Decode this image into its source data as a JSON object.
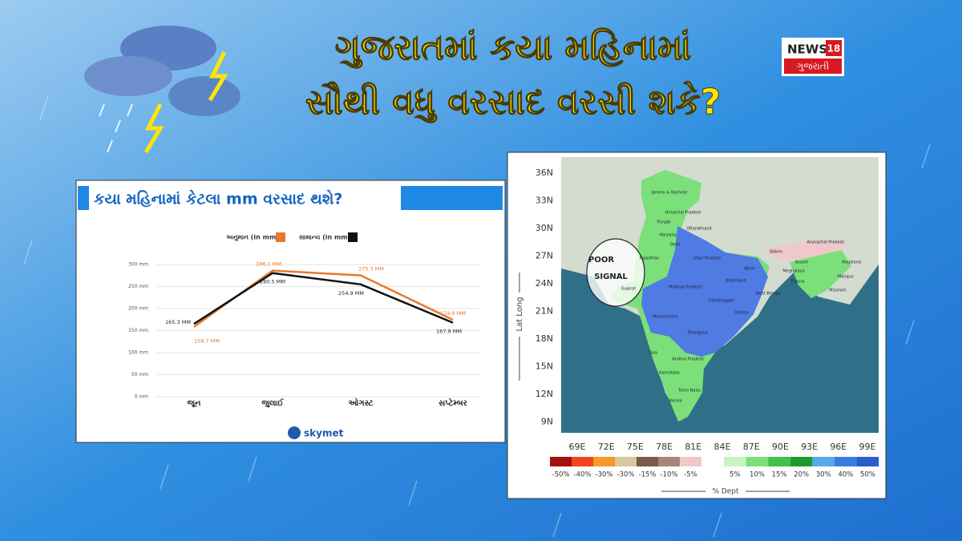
{
  "header": {
    "title_line1": "ગુજરાતમાં કયા મહિનામાં",
    "title_line2": "સૌથી વધુ વરસાદ વરસી શકે?",
    "logo_top": "NEWS",
    "logo_number": "18",
    "logo_bottom": "ગુજરાતી"
  },
  "chart_data": {
    "type": "line",
    "title": "કયા મહિનામાં કેટલા mm વરસાદ થશે?",
    "categories": [
      "જૂન",
      "જુલાઈ",
      "ઓગસ્ટ",
      "સપ્ટેમ્બર"
    ],
    "series": [
      {
        "name": "અનુમાન (in mm)",
        "color": "#e8792a",
        "values": [
          158.7,
          286.1,
          275.3,
          174.6
        ],
        "value_labels": [
          "158.7 MM",
          "286.1 MM",
          "275.3 MM",
          "174.6 MM"
        ]
      },
      {
        "name": "સામાન્ય (in mm)",
        "color": "#111111",
        "values": [
          165.3,
          280.5,
          254.9,
          167.9
        ],
        "value_labels": [
          "165.3 MM",
          "280.5 MM",
          "254.9 MM",
          "167.9 MM"
        ]
      }
    ],
    "ylim": [
      0,
      300
    ],
    "yticks": [
      {
        "value": 0,
        "label": "0 mm"
      },
      {
        "value": 50,
        "label": "50 mm"
      },
      {
        "value": 100,
        "label": "100 mm"
      },
      {
        "value": 150,
        "label": "150 mm"
      },
      {
        "value": 200,
        "label": "200 mm"
      },
      {
        "value": 250,
        "label": "250 mm"
      },
      {
        "value": 300,
        "label": "300 mm"
      }
    ],
    "grid": true,
    "source": "skymet"
  },
  "map": {
    "lat_labels": [
      "36N",
      "33N",
      "30N",
      "27N",
      "24N",
      "21N",
      "18N",
      "15N",
      "12N",
      "9N"
    ],
    "lon_labels": [
      "69E",
      "72E",
      "75E",
      "78E",
      "81E",
      "84E",
      "87E",
      "90E",
      "93E",
      "96E",
      "99E"
    ],
    "axis_label": "Lat Long",
    "annotation_line1": "POOR",
    "annotation_line2": "SIGNAL",
    "legend_title": "% Dept",
    "legend_negative": [
      {
        "label": "-50%",
        "color": "#a50f0f"
      },
      {
        "label": "-40%",
        "color": "#f0451e"
      },
      {
        "label": "-30%",
        "color": "#f59a25"
      },
      {
        "label": "-30%",
        "color": "#d8c9a0"
      },
      {
        "label": "-15%",
        "color": "#7a5a4a"
      },
      {
        "label": "-10%",
        "color": "#a88578"
      },
      {
        "label": "-5%",
        "color": "#f0c8c8"
      }
    ],
    "legend_positive": [
      {
        "label": "5%",
        "color": "#c8f5c0"
      },
      {
        "label": "10%",
        "color": "#7be07a"
      },
      {
        "label": "15%",
        "color": "#3fc24a"
      },
      {
        "label": "20%",
        "color": "#1f9a2e"
      },
      {
        "label": "30%",
        "color": "#5aa8e8"
      },
      {
        "label": "40%",
        "color": "#3a7de0"
      },
      {
        "label": "50%",
        "color": "#2a5ccc"
      }
    ],
    "state_labels": [
      "Jammu & Kashmir",
      "Himachal Pradesh",
      "Punjab",
      "Uttarakhand",
      "Haryana",
      "Delhi",
      "Rajasthan",
      "Uttar Pradesh",
      "Bihar",
      "Sikkim",
      "Arunachal Pradesh",
      "Assam",
      "Nagaland",
      "Meghalaya",
      "Manipur",
      "Tripura",
      "Mizoram",
      "West Bengal",
      "Jharkhand",
      "Gujarat",
      "Madhya Pradesh",
      "Chhattisgarh",
      "Odisha",
      "Maharashtra",
      "Telangana",
      "Goa",
      "Andhra Pradesh",
      "Karnataka",
      "Tamil Nadu",
      "Kerala"
    ]
  }
}
